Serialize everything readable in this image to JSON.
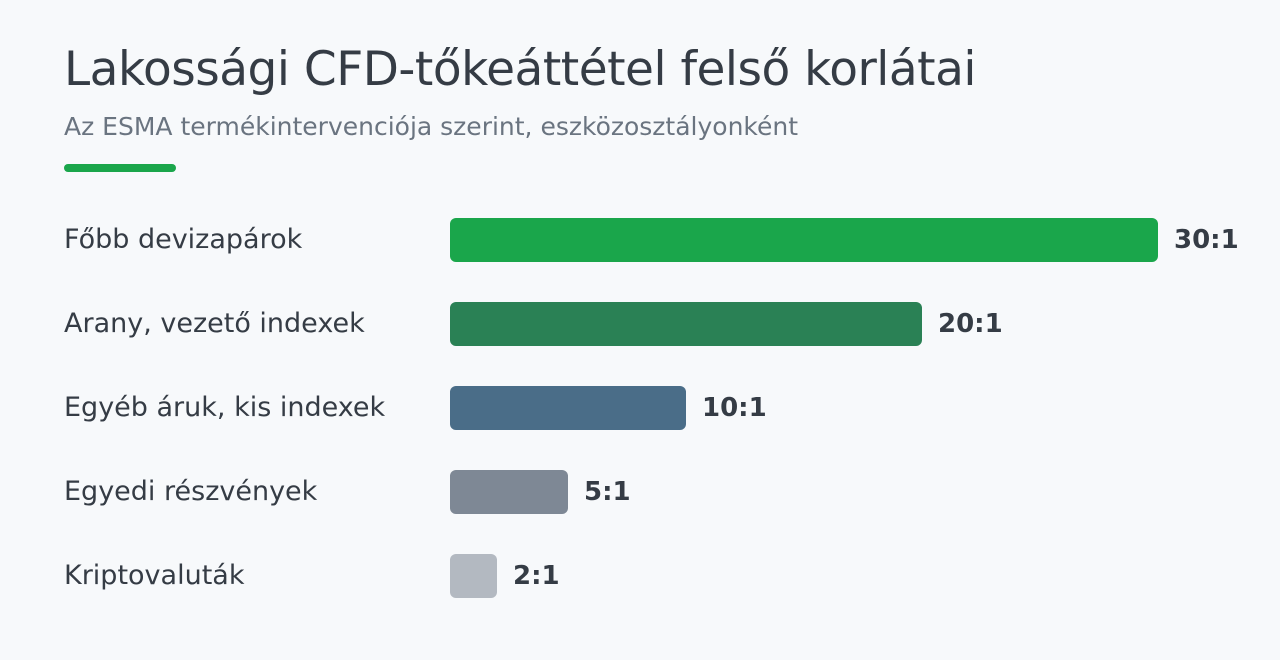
{
  "header": {
    "title": "Lakossági CFD-tőkeáttétel felső korlátai",
    "subtitle": "Az ESMA termékintervenciója szerint, eszközosztályonként",
    "accent_color": "#1aa64b"
  },
  "chart_data": {
    "type": "bar",
    "orientation": "horizontal",
    "title": "Lakossági CFD-tőkeáttétel felső korlátai",
    "subtitle": "Az ESMA termékintervenciója szerint, eszközosztályonként",
    "categories": [
      "Főbb devizapárok",
      "Arany, vezető indexek",
      "Egyéb áruk, kis indexek",
      "Egyedi részvények",
      "Kriptovaluták"
    ],
    "values": [
      30,
      20,
      10,
      5,
      2
    ],
    "data_labels": [
      "30:1",
      "20:1",
      "10:1",
      "5:1",
      "2:1"
    ],
    "colors": [
      "#1aa64b",
      "#2a8155",
      "#4a6d88",
      "#7e8895",
      "#b3b9c1"
    ],
    "xlim": [
      0,
      30
    ],
    "grid": false,
    "legend": "none"
  }
}
